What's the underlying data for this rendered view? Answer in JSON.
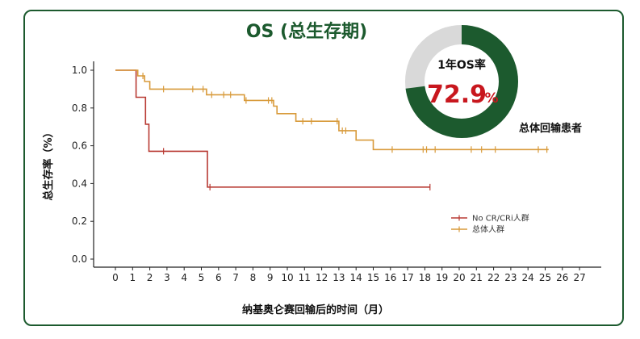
{
  "chart_data": {
    "type": "line",
    "title": "OS (总生存期)",
    "xlabel": "纳基奥仑赛回输后的时间（月）",
    "ylabel": "总生存率（%）",
    "xlim": [
      0,
      27
    ],
    "ylim": [
      0,
      1.0
    ],
    "x_ticks": [
      "0",
      "1",
      "2",
      "3",
      "4",
      "5",
      "6",
      "7",
      "8",
      "9",
      "10",
      "11",
      "12",
      "13",
      "14",
      "15",
      "16",
      "17",
      "18",
      "19",
      "20",
      "21",
      "22",
      "23",
      "24",
      "25",
      "26",
      "27"
    ],
    "y_ticks": [
      "0.0",
      "0.2",
      "0.4",
      "0.6",
      "0.8",
      "1.0"
    ],
    "legend_position": "lower-right",
    "series": [
      {
        "name": "No CR/CRi人群",
        "color": "#b83a33",
        "steps": [
          [
            0,
            1.0
          ],
          [
            1.2,
            1.0
          ],
          [
            1.2,
            0.857
          ],
          [
            1.75,
            0.857
          ],
          [
            1.75,
            0.714
          ],
          [
            1.95,
            0.714
          ],
          [
            1.95,
            0.571
          ],
          [
            5.35,
            0.571
          ],
          [
            5.35,
            0.381
          ],
          [
            18.3,
            0.381
          ]
        ],
        "censor_x": [
          2.8,
          5.5,
          18.3
        ]
      },
      {
        "name": "总体人群",
        "color": "#d89a3a",
        "steps": [
          [
            0,
            1.0
          ],
          [
            1.3,
            1.0
          ],
          [
            1.3,
            0.97
          ],
          [
            1.7,
            0.97
          ],
          [
            1.7,
            0.94
          ],
          [
            2.0,
            0.94
          ],
          [
            2.0,
            0.9
          ],
          [
            5.3,
            0.9
          ],
          [
            5.3,
            0.87
          ],
          [
            7.5,
            0.87
          ],
          [
            7.5,
            0.84
          ],
          [
            9.2,
            0.84
          ],
          [
            9.2,
            0.81
          ],
          [
            9.4,
            0.81
          ],
          [
            9.4,
            0.77
          ],
          [
            10.5,
            0.77
          ],
          [
            10.5,
            0.73
          ],
          [
            13.0,
            0.73
          ],
          [
            13.0,
            0.68
          ],
          [
            14.0,
            0.68
          ],
          [
            14.0,
            0.63
          ],
          [
            15.0,
            0.63
          ],
          [
            15.0,
            0.58
          ],
          [
            25.2,
            0.58
          ]
        ],
        "censor_x": [
          1.6,
          2.8,
          4.5,
          5.1,
          5.6,
          6.3,
          6.7,
          7.6,
          8.9,
          9.1,
          10.9,
          11.4,
          12.9,
          13.2,
          13.4,
          16.1,
          17.9,
          18.1,
          18.6,
          20.7,
          21.3,
          22.1,
          24.6,
          25.1
        ]
      }
    ],
    "donut": {
      "title": "1年OS率",
      "value_text": "72.9",
      "percent_sign": "%",
      "fraction": 0.729,
      "caption": "总体回输患者",
      "fill_color": "#1c5a2e",
      "rest_color": "#d9d9d9"
    }
  }
}
